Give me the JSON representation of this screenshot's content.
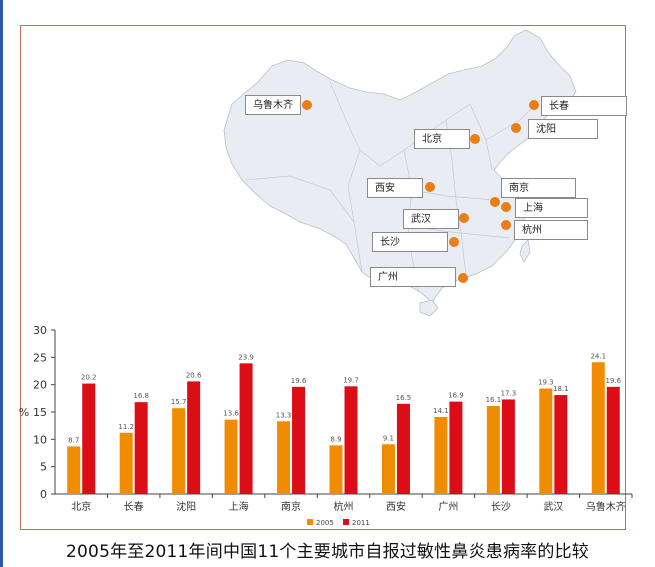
{
  "map": {
    "cities": [
      {
        "key": "wulumuqi",
        "name": "乌鲁木齐"
      },
      {
        "key": "changchun",
        "name": "长春"
      },
      {
        "key": "shenyang",
        "name": "沈阳"
      },
      {
        "key": "beijing",
        "name": "北京"
      },
      {
        "key": "xian",
        "name": "西安"
      },
      {
        "key": "nanjing",
        "name": "南京"
      },
      {
        "key": "shanghai",
        "name": "上海"
      },
      {
        "key": "wuhan",
        "name": "武汉"
      },
      {
        "key": "hangzhou",
        "name": "杭州"
      },
      {
        "key": "changsha",
        "name": "长沙"
      },
      {
        "key": "guangzhou",
        "name": "广州"
      }
    ],
    "colors": {
      "land": "#e9ecf2",
      "border": "#b9c0cc",
      "dot": "#ea7d13"
    }
  },
  "chart_data": {
    "type": "bar",
    "title": "",
    "caption": "2005年至2011年间中国11个主要城市自报过敏性鼻炎患病率的比较",
    "xlabel": "",
    "ylabel": "%",
    "ylim": [
      0,
      30
    ],
    "yticks": [
      "0",
      "5",
      "10",
      "15",
      "20",
      "25",
      "30"
    ],
    "grid": false,
    "legend_position": "bottom-center",
    "categories": [
      "北京",
      "长春",
      "沈阳",
      "上海",
      "南京",
      "杭州",
      "西安",
      "广州",
      "长沙",
      "武汉",
      "乌鲁木齐"
    ],
    "series": [
      {
        "name": "2005",
        "color": "#f08c00",
        "values": [
          8.7,
          11.2,
          15.7,
          13.6,
          13.3,
          8.9,
          9.1,
          14.1,
          16.1,
          19.3,
          24.1
        ]
      },
      {
        "name": "2011",
        "color": "#dd0d18",
        "values": [
          20.2,
          16.8,
          20.6,
          23.9,
          19.6,
          19.7,
          16.5,
          16.9,
          17.3,
          18.1,
          19.6
        ]
      }
    ]
  }
}
